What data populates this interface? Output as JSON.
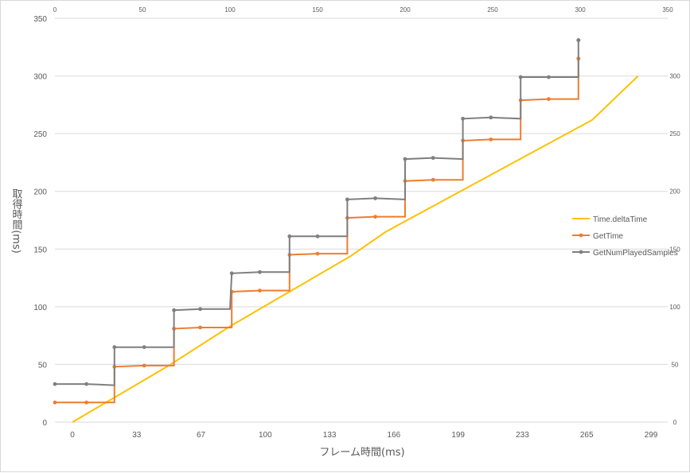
{
  "chart_data": {
    "type": "line",
    "xlabel": "フレーム時間(ms)",
    "ylabel": "取得時間(ms)",
    "x_bottom_ticks": [
      "0",
      "33",
      "67",
      "100",
      "133",
      "166",
      "199",
      "233",
      "265",
      "299"
    ],
    "y_left_ticks": [
      "0",
      "50",
      "100",
      "150",
      "200",
      "250",
      "300",
      "350"
    ],
    "x_top_ticks": [
      "0",
      "50",
      "100",
      "150",
      "200",
      "250",
      "300",
      "350"
    ],
    "y_right_ticks": [
      "0",
      "50",
      "100",
      "150",
      "200",
      "250",
      "300"
    ],
    "ylim": [
      0,
      350
    ],
    "xlim_top": [
      0,
      350
    ],
    "grid": "horizontal",
    "legend_position": "right",
    "series": [
      {
        "name": "Time.deltaTime",
        "color": "#ffc000",
        "style": "line",
        "points": [
          [
            10,
            0
          ],
          [
            64,
            48
          ],
          [
            100,
            83
          ],
          [
            169,
            144
          ],
          [
            189,
            165
          ],
          [
            307,
            262
          ],
          [
            333,
            300
          ]
        ]
      },
      {
        "name": "GetTime",
        "color": "#ed7d31",
        "style": "step",
        "points": [
          [
            0,
            17
          ],
          [
            18,
            17
          ],
          [
            34,
            17
          ],
          [
            34,
            48
          ],
          [
            51,
            49
          ],
          [
            68,
            49
          ],
          [
            68,
            81
          ],
          [
            83,
            82
          ],
          [
            101,
            82
          ],
          [
            101,
            113
          ],
          [
            117,
            114
          ],
          [
            134,
            114
          ],
          [
            134,
            145
          ],
          [
            150,
            146
          ],
          [
            167,
            146
          ],
          [
            167,
            177
          ],
          [
            183,
            178
          ],
          [
            200,
            178
          ],
          [
            200,
            209
          ],
          [
            216,
            210
          ],
          [
            233,
            210
          ],
          [
            233,
            244
          ],
          [
            249,
            245
          ],
          [
            266,
            245
          ],
          [
            266,
            279
          ],
          [
            282,
            280
          ],
          [
            299,
            280
          ],
          [
            299,
            315
          ]
        ]
      },
      {
        "name": "GetNumPlayedSamples",
        "color": "#7f7f7f",
        "style": "step",
        "points": [
          [
            0,
            33
          ],
          [
            18,
            33
          ],
          [
            34,
            32
          ],
          [
            34,
            65
          ],
          [
            51,
            65
          ],
          [
            68,
            65
          ],
          [
            68,
            97
          ],
          [
            83,
            98
          ],
          [
            100,
            98
          ],
          [
            101,
            129
          ],
          [
            117,
            130
          ],
          [
            134,
            130
          ],
          [
            134,
            161
          ],
          [
            150,
            161
          ],
          [
            167,
            161
          ],
          [
            167,
            193
          ],
          [
            183,
            194
          ],
          [
            200,
            193
          ],
          [
            200,
            228
          ],
          [
            216,
            229
          ],
          [
            233,
            228
          ],
          [
            233,
            263
          ],
          [
            249,
            264
          ],
          [
            266,
            263
          ],
          [
            266,
            299
          ],
          [
            282,
            299
          ],
          [
            299,
            299
          ],
          [
            299,
            331
          ]
        ]
      }
    ]
  }
}
